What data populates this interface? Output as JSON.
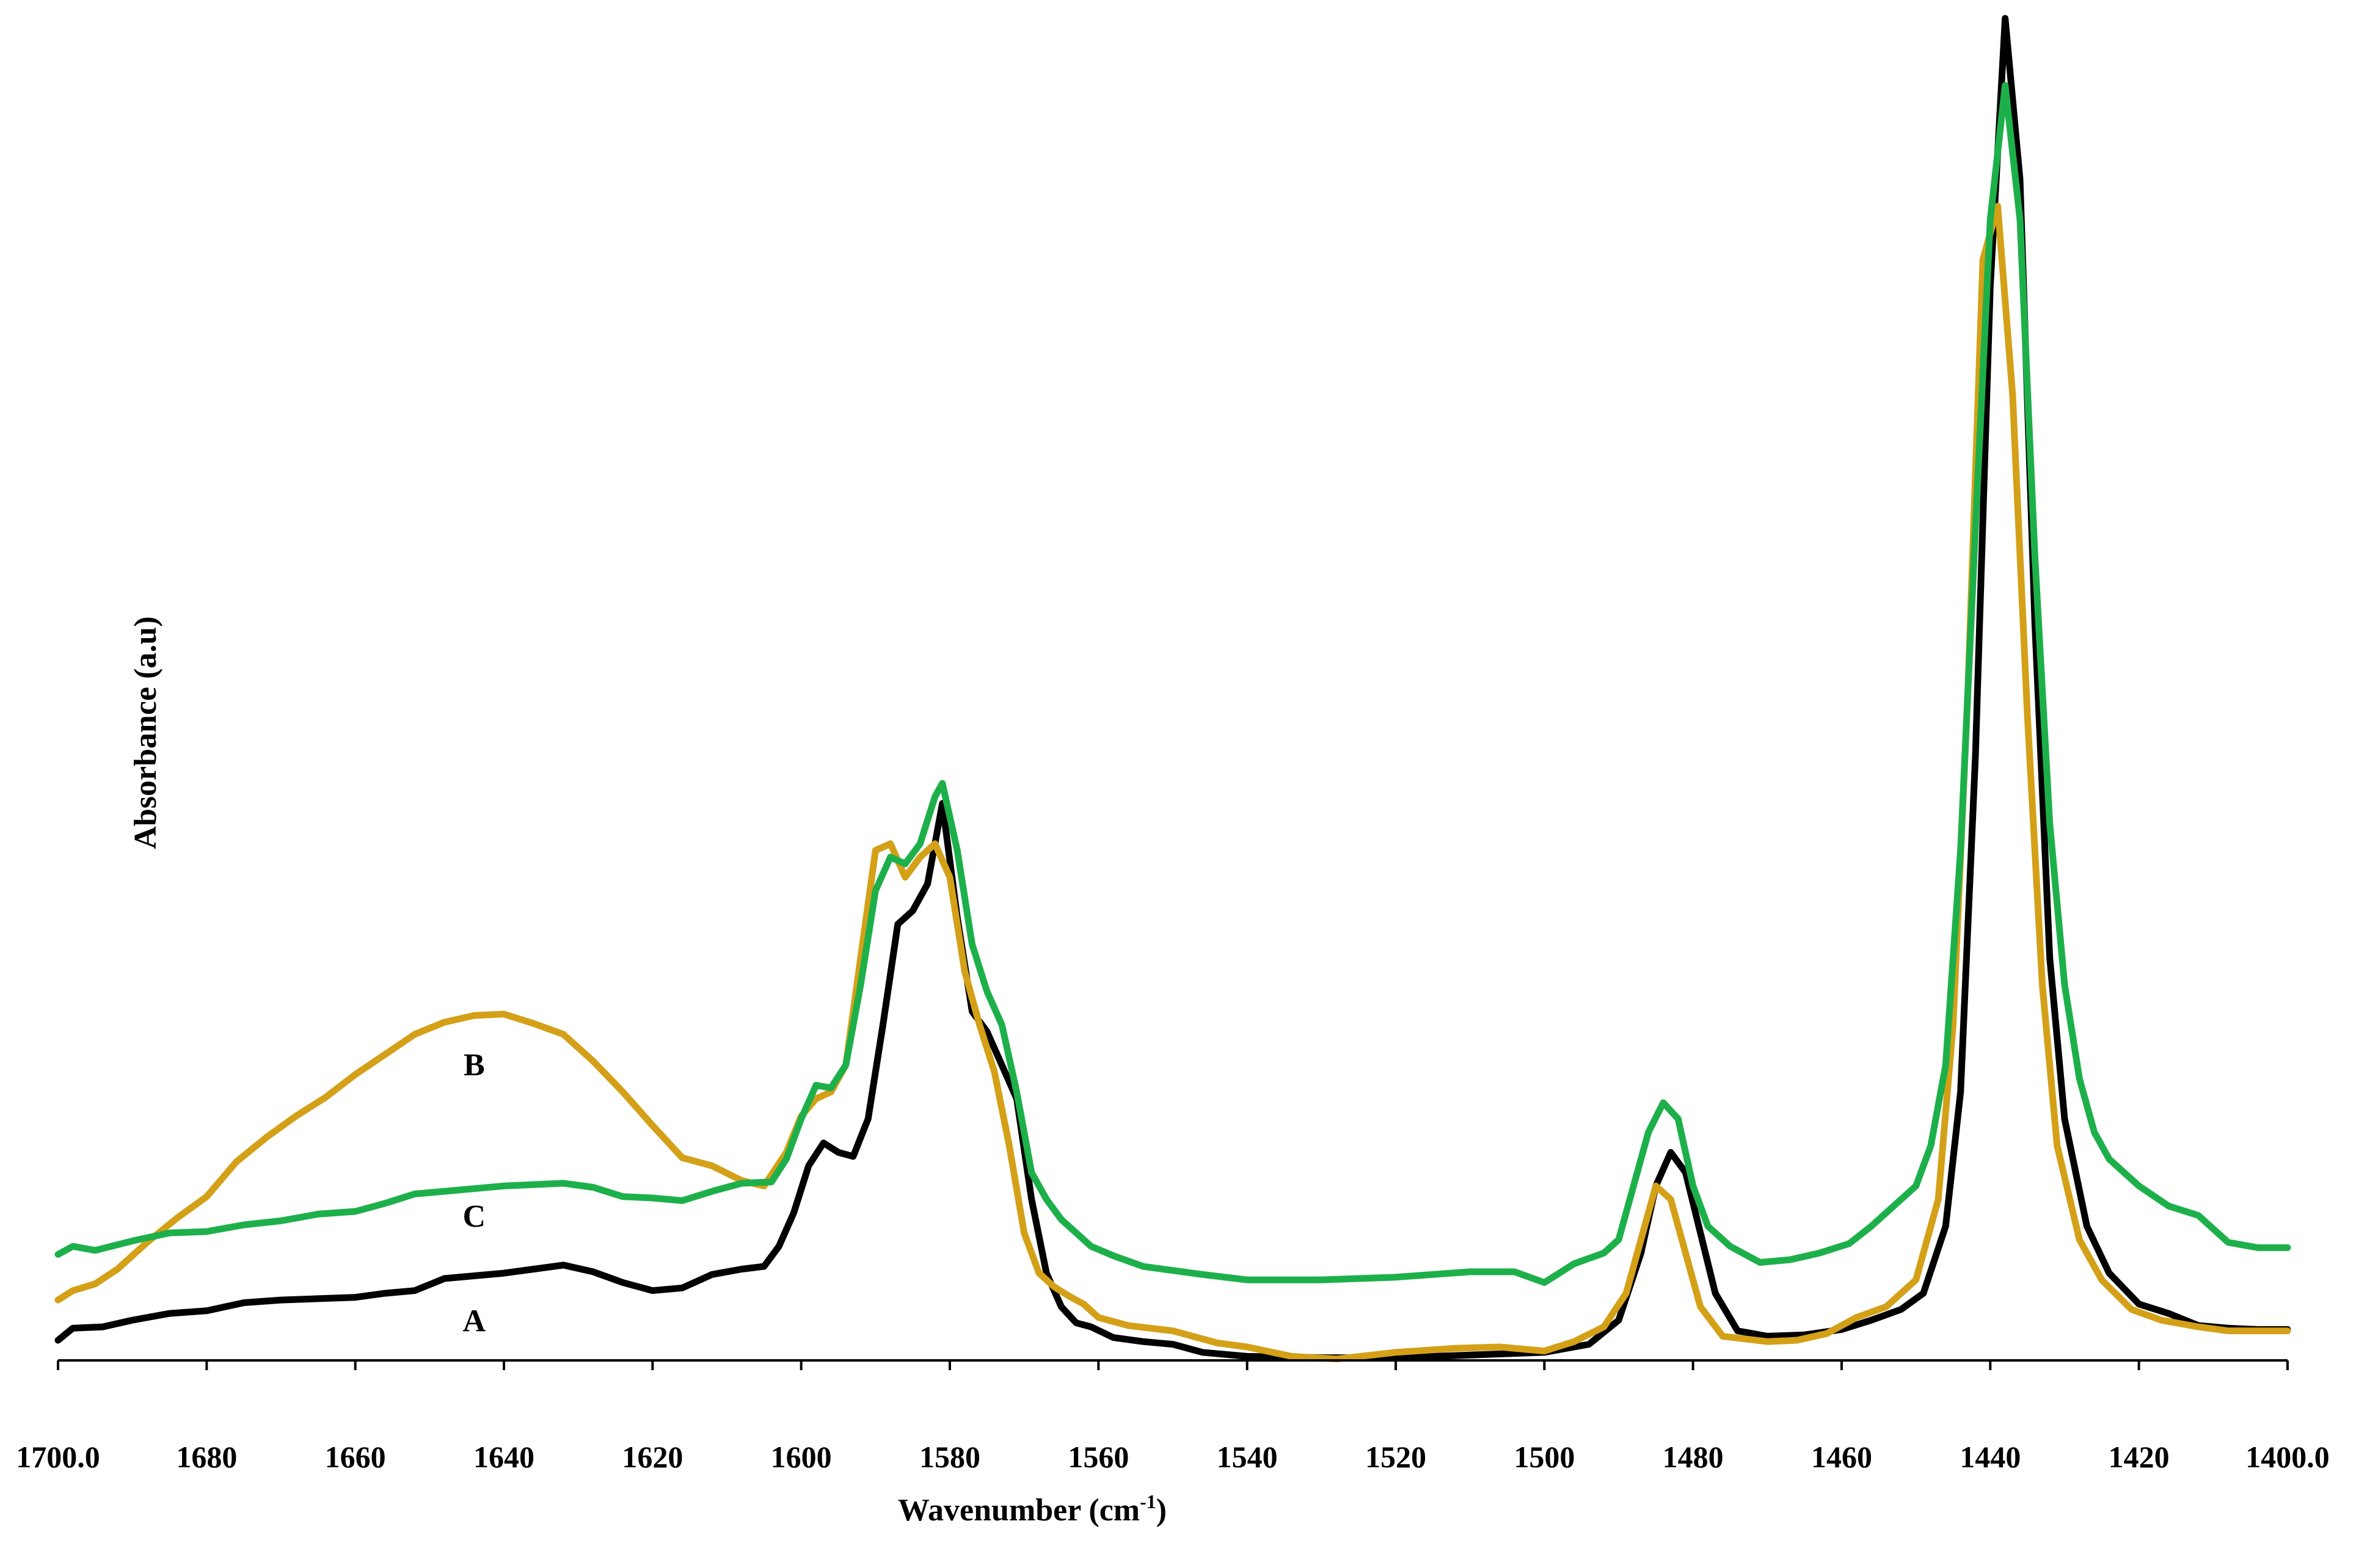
{
  "chart_data": {
    "type": "line",
    "title": "",
    "xlabel": "Wavenumber (cm",
    "xlabel_sup": "-1",
    "xlabel_suffix": ")",
    "ylabel": "Absorbance (a.u)",
    "xlim": [
      1700,
      1400
    ],
    "ylim": [
      0,
      100
    ],
    "x_ticks": [
      1700,
      1680,
      1660,
      1640,
      1620,
      1600,
      1580,
      1560,
      1540,
      1520,
      1500,
      1480,
      1460,
      1440,
      1420,
      1400
    ],
    "x_tick_labels": [
      "1700.0",
      "1680",
      "1660",
      "1640",
      "1620",
      "1600",
      "1580",
      "1560",
      "1540",
      "1520",
      "1500",
      "1480",
      "1460",
      "1440",
      "1420",
      "1400.0"
    ],
    "series": [
      {
        "name": "A",
        "color": "#000000",
        "label_at": [
          1644,
          2.7
        ],
        "points": [
          [
            1700,
            1.5
          ],
          [
            1698,
            2.4
          ],
          [
            1694,
            2.5
          ],
          [
            1690,
            3
          ],
          [
            1685,
            3.5
          ],
          [
            1680,
            3.7
          ],
          [
            1675,
            4.3
          ],
          [
            1670,
            4.5
          ],
          [
            1665,
            4.6
          ],
          [
            1660,
            4.7
          ],
          [
            1656,
            5
          ],
          [
            1652,
            5.2
          ],
          [
            1648,
            6.1
          ],
          [
            1644,
            6.3
          ],
          [
            1640,
            6.5
          ],
          [
            1636,
            6.8
          ],
          [
            1632,
            7.1
          ],
          [
            1628,
            6.6
          ],
          [
            1624,
            5.8
          ],
          [
            1620,
            5.2
          ],
          [
            1616,
            5.4
          ],
          [
            1612,
            6.4
          ],
          [
            1608,
            6.8
          ],
          [
            1605,
            7
          ],
          [
            1603,
            8.5
          ],
          [
            1601,
            11
          ],
          [
            1599,
            14.5
          ],
          [
            1597,
            16.2
          ],
          [
            1595,
            15.5
          ],
          [
            1593,
            15.2
          ],
          [
            1591,
            18
          ],
          [
            1589,
            25
          ],
          [
            1587,
            32.5
          ],
          [
            1585,
            33.5
          ],
          [
            1583,
            35.5
          ],
          [
            1581,
            41.5
          ],
          [
            1579,
            33
          ],
          [
            1577,
            26
          ],
          [
            1575,
            24.5
          ],
          [
            1573,
            22
          ],
          [
            1571,
            19.5
          ],
          [
            1569,
            12
          ],
          [
            1567,
            6.5
          ],
          [
            1565,
            4
          ],
          [
            1563,
            2.8
          ],
          [
            1561,
            2.5
          ],
          [
            1558,
            1.7
          ],
          [
            1554,
            1.4
          ],
          [
            1550,
            1.2
          ],
          [
            1546,
            0.6
          ],
          [
            1540,
            0.3
          ],
          [
            1530,
            0.2
          ],
          [
            1520,
            0.2
          ],
          [
            1510,
            0.4
          ],
          [
            1500,
            0.6
          ],
          [
            1494,
            1.2
          ],
          [
            1490,
            3
          ],
          [
            1487,
            8
          ],
          [
            1485,
            13
          ],
          [
            1483,
            15.5
          ],
          [
            1481,
            14
          ],
          [
            1479,
            9.5
          ],
          [
            1477,
            5
          ],
          [
            1474,
            2.2
          ],
          [
            1470,
            1.8
          ],
          [
            1465,
            1.9
          ],
          [
            1460,
            2.3
          ],
          [
            1456,
            3
          ],
          [
            1452,
            3.8
          ],
          [
            1449,
            5
          ],
          [
            1446,
            10
          ],
          [
            1444,
            20
          ],
          [
            1442,
            45
          ],
          [
            1440,
            80
          ],
          [
            1438,
            100
          ],
          [
            1436,
            88
          ],
          [
            1434,
            55
          ],
          [
            1432,
            30
          ],
          [
            1430,
            18
          ],
          [
            1427,
            10
          ],
          [
            1424,
            6.5
          ],
          [
            1420,
            4.2
          ],
          [
            1416,
            3.5
          ],
          [
            1412,
            2.6
          ],
          [
            1408,
            2.4
          ],
          [
            1404,
            2.3
          ],
          [
            1400,
            2.3
          ]
        ]
      },
      {
        "name": "B",
        "color": "#D4A017",
        "label_at": [
          1644,
          21.8
        ],
        "points": [
          [
            1700,
            4.5
          ],
          [
            1698,
            5.2
          ],
          [
            1695,
            5.7
          ],
          [
            1692,
            6.8
          ],
          [
            1688,
            8.8
          ],
          [
            1684,
            10.6
          ],
          [
            1680,
            12.2
          ],
          [
            1676,
            14.8
          ],
          [
            1672,
            16.6
          ],
          [
            1668,
            18.2
          ],
          [
            1664,
            19.6
          ],
          [
            1660,
            21.3
          ],
          [
            1656,
            22.8
          ],
          [
            1652,
            24.3
          ],
          [
            1648,
            25.2
          ],
          [
            1644,
            25.7
          ],
          [
            1640,
            25.8
          ],
          [
            1636,
            25.1
          ],
          [
            1632,
            24.3
          ],
          [
            1628,
            22.3
          ],
          [
            1624,
            20
          ],
          [
            1620,
            17.5
          ],
          [
            1616,
            15.1
          ],
          [
            1612,
            14.5
          ],
          [
            1608,
            13.4
          ],
          [
            1605,
            13
          ],
          [
            1602,
            15.5
          ],
          [
            1600,
            18.2
          ],
          [
            1598,
            19.5
          ],
          [
            1596,
            20
          ],
          [
            1594,
            22
          ],
          [
            1592,
            30
          ],
          [
            1590,
            38
          ],
          [
            1588,
            38.5
          ],
          [
            1586,
            36
          ],
          [
            1584,
            37.5
          ],
          [
            1582,
            38.5
          ],
          [
            1580,
            36
          ],
          [
            1578,
            29
          ],
          [
            1576,
            25
          ],
          [
            1574,
            21.5
          ],
          [
            1572,
            16
          ],
          [
            1570,
            9.5
          ],
          [
            1568,
            6.5
          ],
          [
            1566,
            5.5
          ],
          [
            1564,
            4.8
          ],
          [
            1562,
            4.2
          ],
          [
            1560,
            3.2
          ],
          [
            1556,
            2.6
          ],
          [
            1550,
            2.2
          ],
          [
            1544,
            1.3
          ],
          [
            1540,
            1
          ],
          [
            1534,
            0.3
          ],
          [
            1528,
            0.1
          ],
          [
            1520,
            0.6
          ],
          [
            1512,
            0.9
          ],
          [
            1506,
            1
          ],
          [
            1500,
            0.7
          ],
          [
            1496,
            1.4
          ],
          [
            1492,
            2.5
          ],
          [
            1489,
            5
          ],
          [
            1487,
            9
          ],
          [
            1485,
            13
          ],
          [
            1483,
            12
          ],
          [
            1481,
            8
          ],
          [
            1479,
            4
          ],
          [
            1476,
            1.8
          ],
          [
            1470,
            1.4
          ],
          [
            1466,
            1.5
          ],
          [
            1462,
            2
          ],
          [
            1458,
            3.2
          ],
          [
            1454,
            4
          ],
          [
            1450,
            6
          ],
          [
            1447,
            12
          ],
          [
            1445,
            25
          ],
          [
            1443,
            50
          ],
          [
            1441,
            82
          ],
          [
            1439,
            86
          ],
          [
            1437,
            72
          ],
          [
            1435,
            48
          ],
          [
            1433,
            28
          ],
          [
            1431,
            16
          ],
          [
            1428,
            9
          ],
          [
            1425,
            6
          ],
          [
            1421,
            3.8
          ],
          [
            1417,
            3
          ],
          [
            1412,
            2.5
          ],
          [
            1408,
            2.2
          ],
          [
            1404,
            2.2
          ],
          [
            1400,
            2.2
          ]
        ]
      },
      {
        "name": "C",
        "color": "#1DB04A",
        "label_at": [
          1644,
          10.5
        ],
        "points": [
          [
            1700,
            7.9
          ],
          [
            1698,
            8.5
          ],
          [
            1695,
            8.2
          ],
          [
            1690,
            8.9
          ],
          [
            1685,
            9.5
          ],
          [
            1680,
            9.6
          ],
          [
            1675,
            10.1
          ],
          [
            1670,
            10.4
          ],
          [
            1665,
            10.9
          ],
          [
            1660,
            11.1
          ],
          [
            1656,
            11.7
          ],
          [
            1652,
            12.4
          ],
          [
            1648,
            12.6
          ],
          [
            1644,
            12.8
          ],
          [
            1640,
            13
          ],
          [
            1636,
            13.1
          ],
          [
            1632,
            13.2
          ],
          [
            1628,
            12.9
          ],
          [
            1624,
            12.2
          ],
          [
            1620,
            12.1
          ],
          [
            1616,
            11.9
          ],
          [
            1612,
            12.6
          ],
          [
            1608,
            13.2
          ],
          [
            1604,
            13.3
          ],
          [
            1602,
            15
          ],
          [
            1600,
            18
          ],
          [
            1598,
            20.5
          ],
          [
            1596,
            20.3
          ],
          [
            1594,
            22
          ],
          [
            1592,
            28
          ],
          [
            1590,
            35
          ],
          [
            1588,
            37.5
          ],
          [
            1586,
            37
          ],
          [
            1584,
            38.5
          ],
          [
            1582,
            42
          ],
          [
            1581,
            43
          ],
          [
            1579,
            38
          ],
          [
            1577,
            31
          ],
          [
            1575,
            27.5
          ],
          [
            1573,
            25
          ],
          [
            1571,
            20
          ],
          [
            1569,
            14
          ],
          [
            1567,
            12
          ],
          [
            1565,
            10.5
          ],
          [
            1563,
            9.5
          ],
          [
            1561,
            8.5
          ],
          [
            1558,
            7.8
          ],
          [
            1554,
            7
          ],
          [
            1550,
            6.7
          ],
          [
            1546,
            6.4
          ],
          [
            1540,
            6
          ],
          [
            1530,
            6
          ],
          [
            1520,
            6.2
          ],
          [
            1510,
            6.6
          ],
          [
            1504,
            6.6
          ],
          [
            1500,
            5.8
          ],
          [
            1496,
            7.2
          ],
          [
            1492,
            8
          ],
          [
            1490,
            9
          ],
          [
            1488,
            13
          ],
          [
            1486,
            17
          ],
          [
            1484,
            19.2
          ],
          [
            1482,
            18
          ],
          [
            1480,
            13
          ],
          [
            1478,
            10
          ],
          [
            1475,
            8.5
          ],
          [
            1471,
            7.3
          ],
          [
            1467,
            7.5
          ],
          [
            1463,
            8
          ],
          [
            1459,
            8.7
          ],
          [
            1456,
            10
          ],
          [
            1453,
            11.5
          ],
          [
            1450,
            13
          ],
          [
            1448,
            16
          ],
          [
            1446,
            22
          ],
          [
            1444,
            38
          ],
          [
            1442,
            62
          ],
          [
            1440,
            85
          ],
          [
            1438,
            95
          ],
          [
            1436,
            85
          ],
          [
            1434,
            60
          ],
          [
            1432,
            40
          ],
          [
            1430,
            28
          ],
          [
            1428,
            21
          ],
          [
            1426,
            17
          ],
          [
            1424,
            15
          ],
          [
            1420,
            13
          ],
          [
            1416,
            11.5
          ],
          [
            1412,
            10.8
          ],
          [
            1408,
            8.8
          ],
          [
            1404,
            8.4
          ],
          [
            1400,
            8.4
          ]
        ]
      }
    ]
  }
}
